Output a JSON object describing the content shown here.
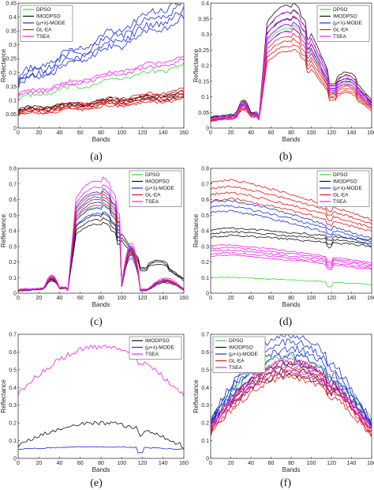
{
  "colors": {
    "DPSO": "#33dd33",
    "IMODPSO": "#111111",
    "MODE": "#1a2fd6",
    "GLEA": "#e01818",
    "TSEA": "#ee22ee"
  },
  "chart_data": [
    {
      "type": "line",
      "panel_label": "(a)",
      "xlabel": "Bands",
      "ylabel": "Reflectance",
      "xlim": [
        0,
        160
      ],
      "ylim": [
        0,
        0.45
      ],
      "xticks": [
        "0",
        "20",
        "40",
        "60",
        "80",
        "100",
        "120",
        "140",
        "160"
      ],
      "yticks": [
        "0",
        "0.05",
        "0.1",
        "0.15",
        "0.2",
        "0.25",
        "0.3",
        "0.35",
        "0.4",
        "0.45"
      ],
      "legend_position": "top-left",
      "legend": [
        "DPSO",
        "IMODPSO",
        "(μ+λ)-MODE",
        "GL-EA",
        "TSEA"
      ],
      "shape": "flat",
      "series": [
        {
          "name": "DPSO",
          "color": "#33dd33",
          "count": 1,
          "base": 0.105,
          "end": 0.225,
          "amp": 0.015
        },
        {
          "name": "IMODPSO",
          "color": "#111111",
          "count": 3,
          "base": 0.065,
          "end": 0.12,
          "amp": 0.012
        },
        {
          "name": "(μ+λ)-MODE",
          "color": "#1a2fd6",
          "count": 4,
          "base": 0.17,
          "end": 0.43,
          "amp": 0.025
        },
        {
          "name": "GL-EA",
          "color": "#e01818",
          "count": 6,
          "base": 0.055,
          "end": 0.12,
          "amp": 0.01
        },
        {
          "name": "TSEA",
          "color": "#ee22ee",
          "count": 2,
          "base": 0.12,
          "end": 0.25,
          "amp": 0.012
        }
      ]
    },
    {
      "type": "line",
      "panel_label": "(b)",
      "xlabel": "Bands",
      "ylabel": "Reflectance",
      "xlim": [
        0,
        160
      ],
      "ylim": [
        0,
        0.4
      ],
      "xticks": [
        "0",
        "20",
        "40",
        "60",
        "80",
        "100",
        "120",
        "140",
        "160"
      ],
      "yticks": [
        "0",
        "0.05",
        "0.1",
        "0.15",
        "0.2",
        "0.25",
        "0.3",
        "0.35",
        "0.4"
      ],
      "legend_position": "top-right",
      "legend": [
        "DPSO",
        "IMODPSO",
        "(μ+λ)-MODE",
        "GL-EA",
        "TSEA"
      ],
      "shape": "veg",
      "series": [
        {
          "name": "DPSO",
          "color": "#33dd33",
          "count": 1,
          "base": 0.03,
          "peak": 0.32,
          "amp": 0.004
        },
        {
          "name": "IMODPSO",
          "color": "#111111",
          "count": 3,
          "base": 0.035,
          "peak": 0.37,
          "amp": 0.005
        },
        {
          "name": "(μ+λ)-MODE",
          "color": "#1a2fd6",
          "count": 3,
          "base": 0.03,
          "peak": 0.33,
          "amp": 0.005
        },
        {
          "name": "GL-EA",
          "color": "#e01818",
          "count": 4,
          "base": 0.025,
          "peak": 0.27,
          "amp": 0.005
        },
        {
          "name": "TSEA",
          "color": "#ee22ee",
          "count": 4,
          "base": 0.03,
          "peak": 0.34,
          "amp": 0.004
        }
      ]
    },
    {
      "type": "line",
      "panel_label": "(c)",
      "xlabel": "Bands",
      "ylabel": "Reflectance",
      "xlim": [
        0,
        160
      ],
      "ylim": [
        0,
        0.8
      ],
      "xticks": [
        "0",
        "20",
        "40",
        "60",
        "80",
        "100",
        "120",
        "140",
        "160"
      ],
      "yticks": [
        "0",
        "0.1",
        "0.2",
        "0.3",
        "0.4",
        "0.5",
        "0.6",
        "0.7",
        "0.8"
      ],
      "legend_position": "top-right",
      "legend": [
        "DPSO",
        "IMODPSO",
        "(μ+λ)-MODE",
        "GL-EA",
        "TSEA"
      ],
      "shape": "veg",
      "series": [
        {
          "name": "DPSO",
          "color": "#33dd33",
          "count": 1,
          "base": 0.02,
          "peak": 0.55,
          "amp": 0.006
        },
        {
          "name": "IMODPSO",
          "color": "#111111",
          "count": 3,
          "base": 0.02,
          "peak": 0.47,
          "amp": 0.008
        },
        {
          "name": "(μ+λ)-MODE",
          "color": "#1a2fd6",
          "count": 5,
          "base": 0.02,
          "peak": 0.58,
          "amp": 0.01
        },
        {
          "name": "GL-EA",
          "color": "#e01818",
          "count": 3,
          "base": 0.02,
          "peak": 0.6,
          "amp": 0.008
        },
        {
          "name": "TSEA",
          "color": "#ee22ee",
          "count": 2,
          "base": 0.025,
          "peak": 0.7,
          "amp": 0.008
        }
      ]
    },
    {
      "type": "line",
      "panel_label": "(d)",
      "xlabel": "Bands",
      "ylabel": "Reflectance",
      "xlim": [
        0,
        160
      ],
      "ylim": [
        0,
        0.8
      ],
      "xticks": [
        "0",
        "20",
        "40",
        "60",
        "80",
        "100",
        "120",
        "140",
        "160"
      ],
      "yticks": [
        "0",
        "0.1",
        "0.2",
        "0.3",
        "0.4",
        "0.5",
        "0.6",
        "0.7",
        "0.8"
      ],
      "legend_position": "top-right",
      "legend": [
        "DPSO",
        "IMODPSO",
        "(μ+λ)-MODE",
        "GL-EA",
        "TSEA"
      ],
      "shape": "soil",
      "series": [
        {
          "name": "DPSO",
          "color": "#33dd33",
          "count": 1,
          "base": 0.1,
          "end": 0.05,
          "amp": 0.006
        },
        {
          "name": "IMODPSO",
          "color": "#111111",
          "count": 3,
          "base": 0.38,
          "end": 0.3,
          "amp": 0.012
        },
        {
          "name": "(μ+λ)-MODE",
          "color": "#1a2fd6",
          "count": 3,
          "base": 0.55,
          "end": 0.3,
          "amp": 0.015
        },
        {
          "name": "GL-EA",
          "color": "#e01818",
          "count": 4,
          "base": 0.65,
          "end": 0.4,
          "amp": 0.015
        },
        {
          "name": "TSEA",
          "color": "#ee22ee",
          "count": 5,
          "base": 0.27,
          "end": 0.16,
          "amp": 0.01
        }
      ]
    },
    {
      "type": "line",
      "panel_label": "(e)",
      "xlabel": "Bands",
      "ylabel": "Reflectance",
      "xlim": [
        0,
        160
      ],
      "ylim": [
        0,
        0.7
      ],
      "xticks": [
        "0",
        "20",
        "40",
        "60",
        "80",
        "100",
        "120",
        "140",
        "160"
      ],
      "yticks": [
        "0",
        "0.1",
        "0.2",
        "0.3",
        "0.4",
        "0.5",
        "0.6",
        "0.7"
      ],
      "legend_position": "top-right",
      "legend": [
        "IMODPSO",
        "(μ+λ)-MODE",
        "TSEA"
      ],
      "shape": "hump",
      "series": [
        {
          "name": "IMODPSO",
          "color": "#111111",
          "count": 1,
          "base": 0.06,
          "peak": 0.2,
          "amp": 0.012
        },
        {
          "name": "(μ+λ)-MODE",
          "color": "#1a2fd6",
          "count": 1,
          "base": 0.05,
          "peak": 0.065,
          "amp": 0.003
        },
        {
          "name": "TSEA",
          "color": "#ee22ee",
          "count": 1,
          "base": 0.34,
          "peak": 0.63,
          "amp": 0.015
        }
      ]
    },
    {
      "type": "line",
      "panel_label": "(f)",
      "xlabel": "Bands",
      "ylabel": "Reflectance",
      "xlim": [
        0,
        160
      ],
      "ylim": [
        0,
        0.7
      ],
      "xticks": [
        "0",
        "20",
        "40",
        "60",
        "80",
        "100",
        "120",
        "140",
        "160"
      ],
      "yticks": [
        "0",
        "0.1",
        "0.2",
        "0.3",
        "0.4",
        "0.5",
        "0.6",
        "0.7"
      ],
      "legend_position": "top-left",
      "legend": [
        "DPSO",
        "IMODPSO",
        "(μ+λ)-MODE",
        "GL-EA",
        "TSEA"
      ],
      "shape": "hump",
      "series": [
        {
          "name": "DPSO",
          "color": "#33dd33",
          "count": 1,
          "base": 0.2,
          "peak": 0.58,
          "amp": 0.015
        },
        {
          "name": "IMODPSO",
          "color": "#111111",
          "count": 3,
          "base": 0.17,
          "peak": 0.5,
          "amp": 0.015
        },
        {
          "name": "(μ+λ)-MODE",
          "color": "#1a2fd6",
          "count": 5,
          "base": 0.16,
          "peak": 0.62,
          "amp": 0.02
        },
        {
          "name": "GL-EA",
          "color": "#e01818",
          "count": 4,
          "base": 0.12,
          "peak": 0.5,
          "amp": 0.018
        },
        {
          "name": "TSEA",
          "color": "#ee22ee",
          "count": 3,
          "base": 0.15,
          "peak": 0.52,
          "amp": 0.015
        }
      ]
    }
  ]
}
